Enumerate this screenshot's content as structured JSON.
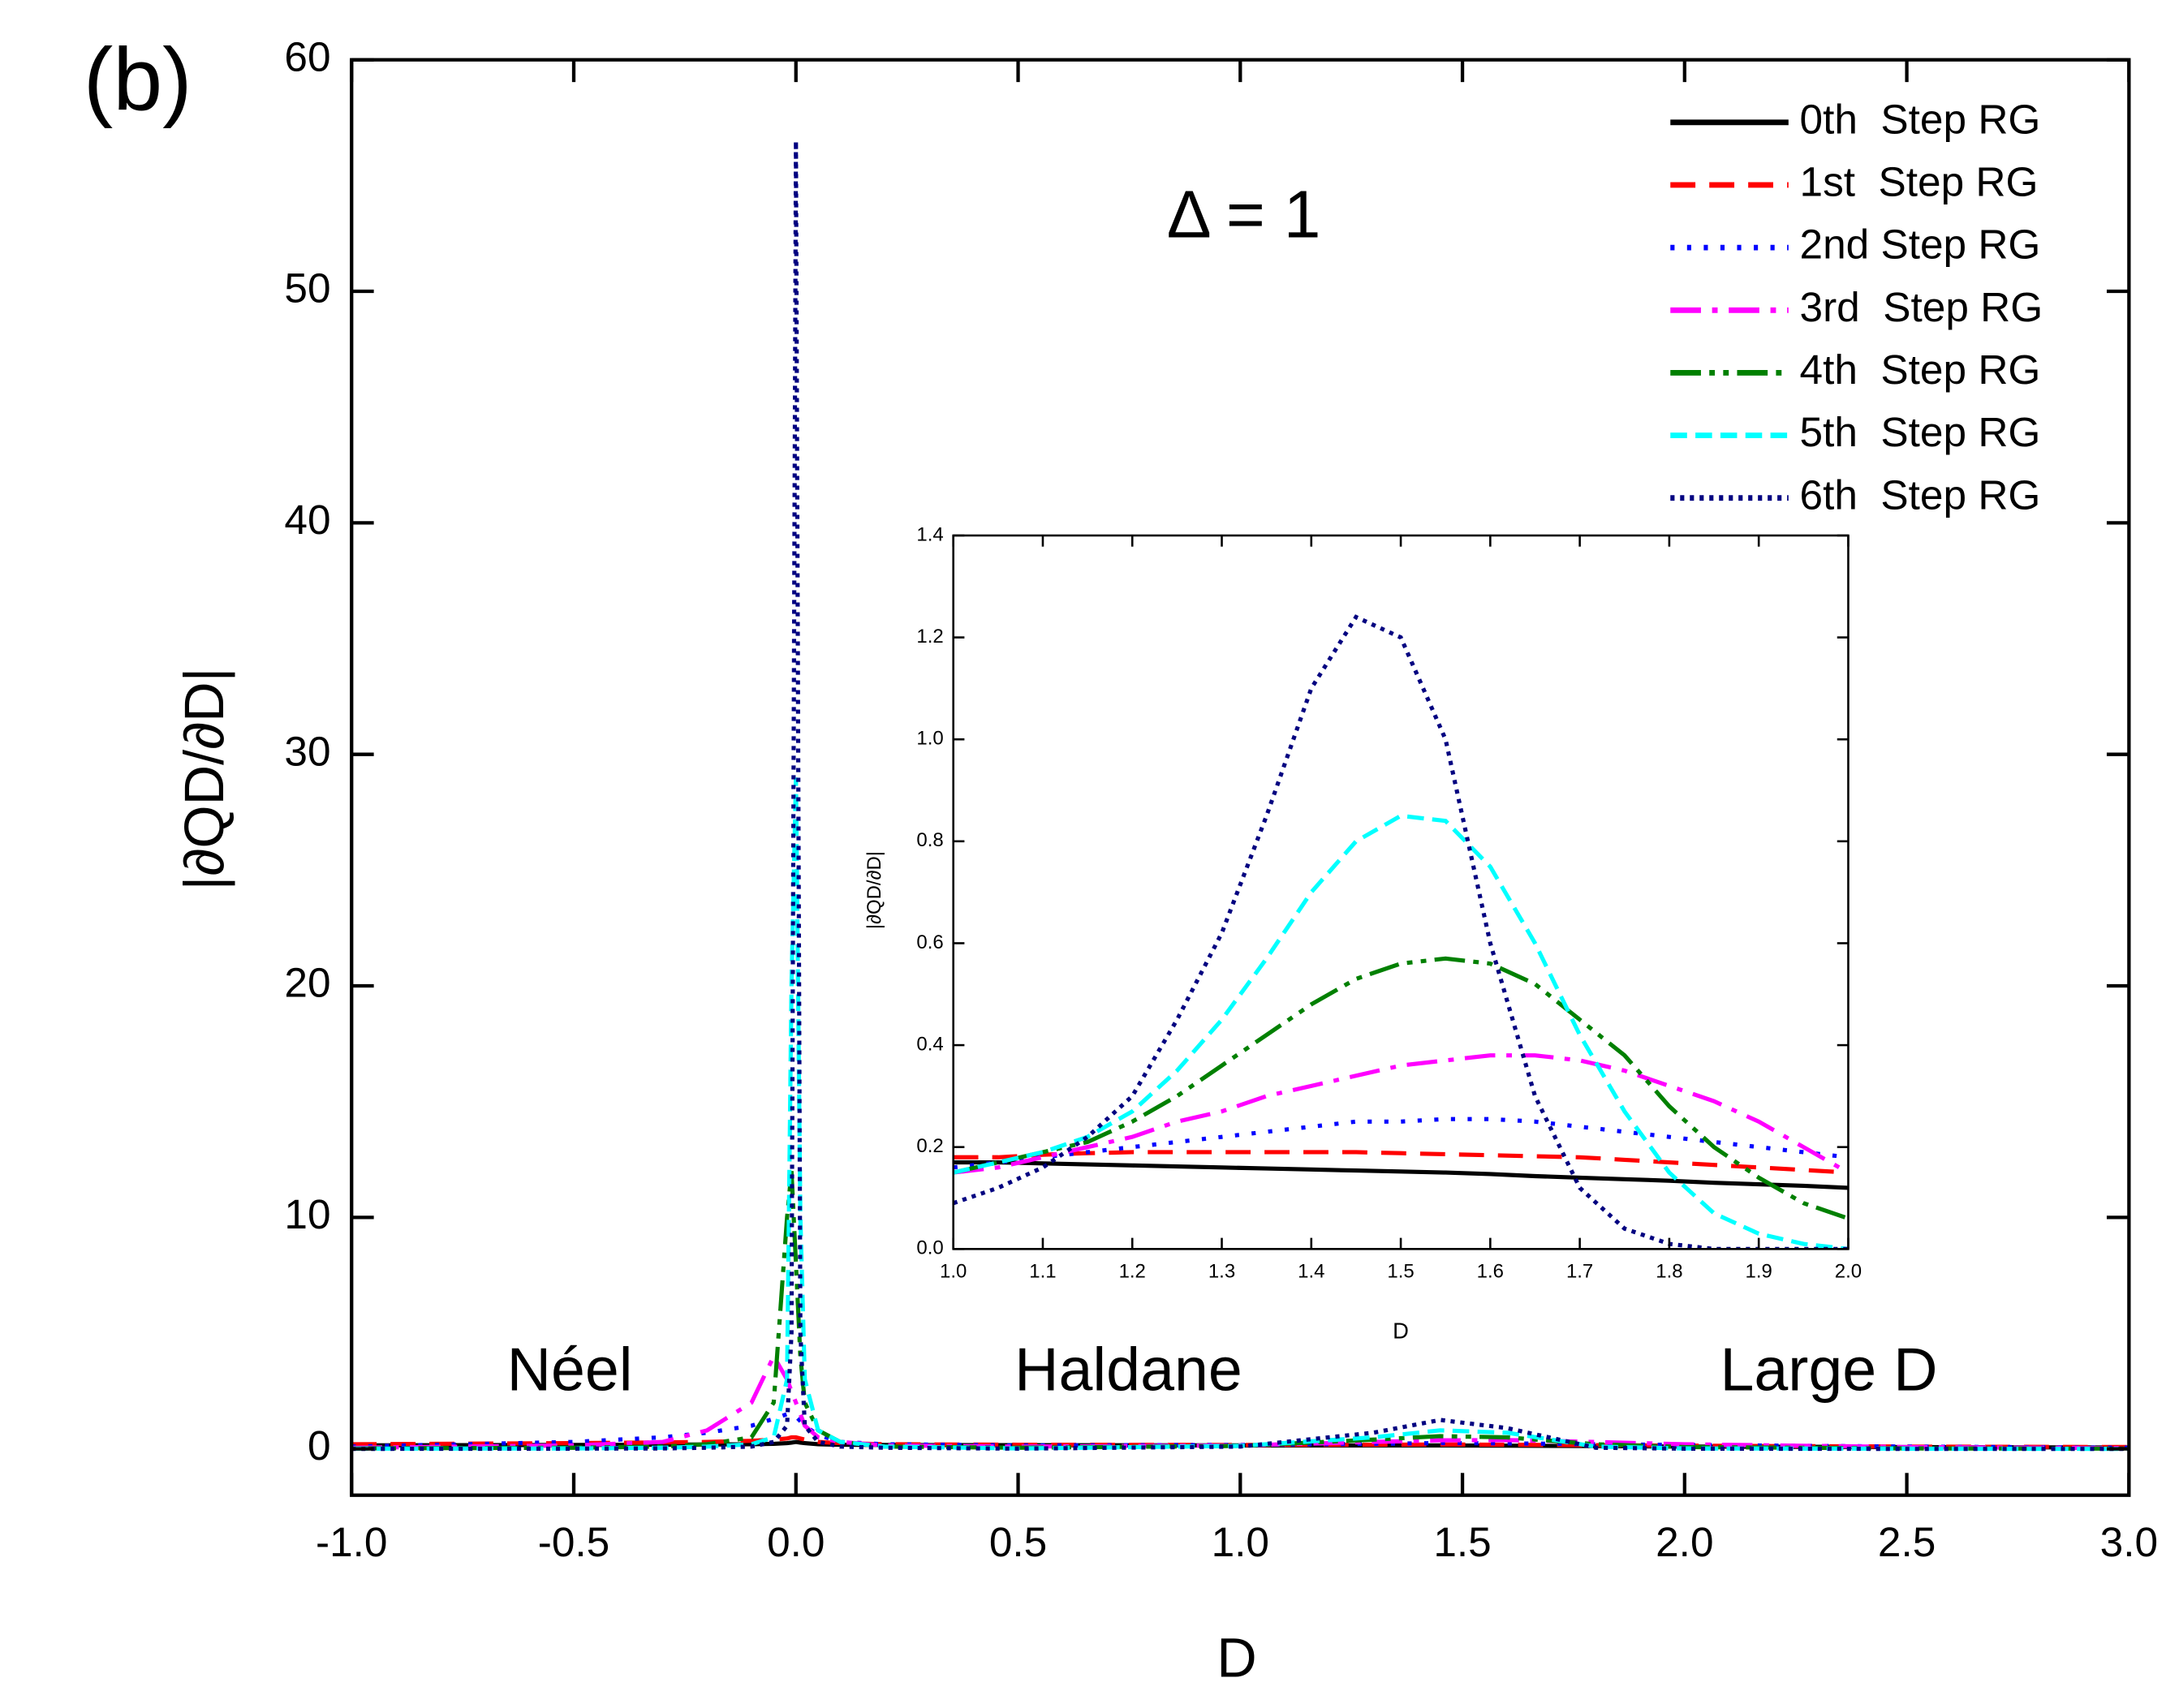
{
  "chart_data": [
    {
      "type": "line",
      "annotations": [
        "(b)",
        "Δ = 1",
        "Néel",
        "Haldane",
        "Large D"
      ],
      "xlabel": "D",
      "ylabel": "|∂QD/∂D|",
      "xlim": [
        -1,
        3
      ],
      "ylim": [
        -2,
        60
      ],
      "xticks": [
        {
          "value": -1,
          "label": "-1.0"
        },
        -0.5,
        {
          "value": 0,
          "label": "0.0"
        },
        0.5,
        {
          "value": 1,
          "label": "1.0"
        },
        1.5,
        {
          "value": 2,
          "label": "2.0"
        },
        2.5,
        {
          "value": 3,
          "label": "3.0"
        }
      ],
      "yticks": [
        0,
        10,
        20,
        30,
        40,
        50,
        60
      ],
      "legend": "upper right",
      "x": [
        -1,
        -0.5,
        -0.3,
        -0.2,
        -0.1,
        -0.05,
        -0.02,
        -0.01,
        0,
        0.01,
        0.02,
        0.05,
        0.1,
        0.2,
        0.5,
        1,
        1.3,
        1.45,
        1.6,
        1.8,
        2,
        2.5,
        3
      ],
      "series": [
        {
          "name": "0th  Step RG",
          "color": "#000000",
          "dash": "solid",
          "values": [
            0.15,
            0.17,
            0.18,
            0.19,
            0.2,
            0.22,
            0.25,
            0.27,
            0.3,
            0.27,
            0.25,
            0.2,
            0.18,
            0.17,
            0.16,
            0.15,
            0.15,
            0.15,
            0.14,
            0.12,
            0.1,
            0.08,
            0.06
          ]
        },
        {
          "name": "1st  Step RG",
          "color": "#ff0000",
          "dash": "dash",
          "values": [
            0.2,
            0.25,
            0.28,
            0.3,
            0.35,
            0.4,
            0.45,
            0.5,
            0.5,
            0.45,
            0.4,
            0.3,
            0.25,
            0.2,
            0.18,
            0.17,
            0.18,
            0.19,
            0.18,
            0.16,
            0.14,
            0.1,
            0.08
          ]
        },
        {
          "name": "2nd Step RG",
          "color": "#0000ff",
          "dash": "dot",
          "values": [
            0.1,
            0.3,
            0.5,
            0.7,
            1.0,
            1.3,
            1.5,
            1.5,
            1.4,
            1.2,
            1.0,
            0.6,
            0.3,
            0.2,
            0.15,
            0.17,
            0.22,
            0.25,
            0.24,
            0.2,
            0.17,
            0.1,
            0.05
          ]
        },
        {
          "name": "3rd  Step RG",
          "color": "#ff00ff",
          "dash": "dashdot",
          "values": [
            0.05,
            0.15,
            0.3,
            0.8,
            2.0,
            4.0,
            3.0,
            2.5,
            2.0,
            1.5,
            1.0,
            0.5,
            0.3,
            0.15,
            0.1,
            0.15,
            0.3,
            0.37,
            0.38,
            0.3,
            0.2,
            0.08,
            0.03
          ]
        },
        {
          "name": "4th  Step RG",
          "color": "#008000",
          "dash": "dashdotdot",
          "values": [
            0.02,
            0.05,
            0.1,
            0.2,
            0.5,
            2,
            10,
            12,
            8,
            4,
            2,
            0.8,
            0.3,
            0.1,
            0.05,
            0.13,
            0.4,
            0.55,
            0.5,
            0.2,
            0.08,
            0.02,
            0.01
          ]
        },
        {
          "name": "5th  Step RG",
          "color": "#00ffff",
          "dash": "shortdash",
          "values": [
            0.01,
            0.02,
            0.05,
            0.1,
            0.2,
            0.5,
            3,
            20,
            29,
            10,
            3,
            0.8,
            0.3,
            0.1,
            0.02,
            0.13,
            0.5,
            0.8,
            0.7,
            0.1,
            0.02,
            0.01,
            0
          ]
        },
        {
          "name": "6th  Step RG",
          "color": "#000080",
          "dash": "shortdot",
          "values": [
            0,
            0.01,
            0.02,
            0.05,
            0.1,
            0.3,
            1,
            5,
            56.5,
            5,
            1,
            0.3,
            0.1,
            0.05,
            0.01,
            0.1,
            0.7,
            1.25,
            0.9,
            0.05,
            0.01,
            0,
            0
          ]
        }
      ]
    },
    {
      "type": "line",
      "xlabel": "D",
      "ylabel": "|∂QD/∂D|",
      "xlim": [
        1,
        2
      ],
      "ylim": [
        0,
        1.4
      ],
      "xticks": [
        {
          "value": 1,
          "label": "1.0"
        },
        1.1,
        1.2,
        1.3,
        1.4,
        1.5,
        1.6,
        1.7,
        1.8,
        1.9,
        {
          "value": 2,
          "label": "2.0"
        }
      ],
      "yticks": [
        {
          "value": 0,
          "label": "0.0"
        },
        0.2,
        0.4,
        0.6,
        0.8,
        {
          "value": 1,
          "label": "1.0"
        },
        1.2,
        1.4
      ],
      "x": [
        1,
        1.05,
        1.1,
        1.15,
        1.2,
        1.25,
        1.3,
        1.35,
        1.4,
        1.45,
        1.5,
        1.55,
        1.6,
        1.65,
        1.7,
        1.75,
        1.8,
        1.85,
        1.9,
        1.95,
        2
      ],
      "series": [
        {
          "color": "#000000",
          "dash": "solid",
          "values": [
            0.17,
            0.17,
            0.168,
            0.166,
            0.164,
            0.162,
            0.16,
            0.158,
            0.156,
            0.154,
            0.152,
            0.15,
            0.147,
            0.143,
            0.14,
            0.137,
            0.134,
            0.13,
            0.127,
            0.124,
            0.12
          ]
        },
        {
          "color": "#ff0000",
          "dash": "dash",
          "values": [
            0.18,
            0.18,
            0.185,
            0.188,
            0.19,
            0.19,
            0.19,
            0.19,
            0.19,
            0.19,
            0.188,
            0.186,
            0.184,
            0.182,
            0.18,
            0.175,
            0.17,
            0.165,
            0.16,
            0.155,
            0.15
          ]
        },
        {
          "color": "#0000ff",
          "dash": "dot",
          "values": [
            0.16,
            0.17,
            0.18,
            0.19,
            0.2,
            0.21,
            0.22,
            0.23,
            0.24,
            0.25,
            0.25,
            0.255,
            0.255,
            0.25,
            0.24,
            0.23,
            0.22,
            0.21,
            0.2,
            0.19,
            0.18
          ]
        },
        {
          "color": "#ff00ff",
          "dash": "dashdot",
          "values": [
            0.15,
            0.16,
            0.18,
            0.2,
            0.22,
            0.25,
            0.27,
            0.3,
            0.32,
            0.34,
            0.36,
            0.37,
            0.38,
            0.38,
            0.37,
            0.35,
            0.32,
            0.29,
            0.25,
            0.2,
            0.15
          ]
        },
        {
          "color": "#008000",
          "dash": "dashdotdot",
          "values": [
            0.15,
            0.17,
            0.19,
            0.21,
            0.25,
            0.3,
            0.36,
            0.42,
            0.48,
            0.53,
            0.56,
            0.57,
            0.56,
            0.52,
            0.45,
            0.38,
            0.28,
            0.2,
            0.14,
            0.09,
            0.06
          ]
        },
        {
          "color": "#00ffff",
          "dash": "shortdash",
          "values": [
            0.15,
            0.17,
            0.19,
            0.22,
            0.27,
            0.35,
            0.45,
            0.57,
            0.7,
            0.8,
            0.85,
            0.84,
            0.75,
            0.6,
            0.42,
            0.27,
            0.15,
            0.07,
            0.03,
            0.01,
            0
          ]
        },
        {
          "color": "#000080",
          "dash": "shortdot",
          "values": [
            0.09,
            0.12,
            0.16,
            0.22,
            0.3,
            0.45,
            0.62,
            0.85,
            1.1,
            1.24,
            1.2,
            1.0,
            0.6,
            0.3,
            0.12,
            0.04,
            0.01,
            0,
            0,
            0,
            0
          ]
        }
      ]
    }
  ]
}
